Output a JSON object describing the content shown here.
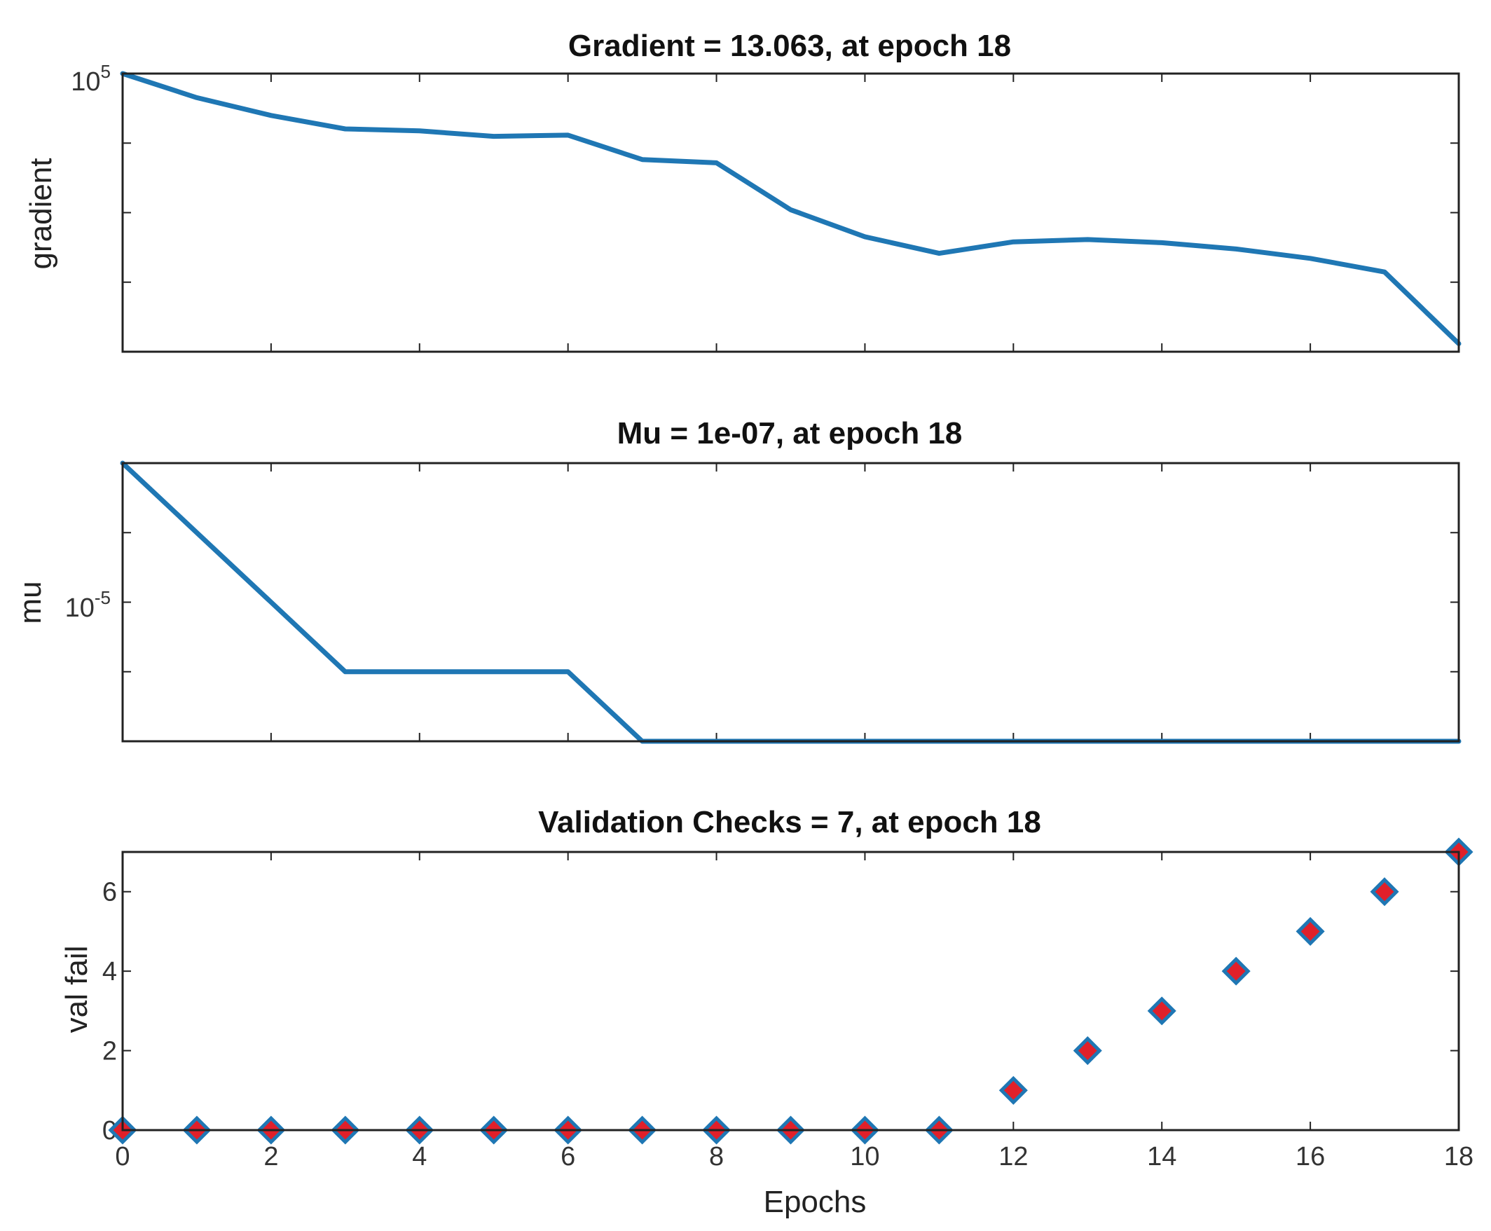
{
  "chart_data": [
    {
      "type": "line",
      "title": "Gradient = 13.063, at epoch 18",
      "xlabel": "",
      "ylabel": "gradient",
      "yscale": "log",
      "xlim": [
        0,
        18
      ],
      "ylim": [
        10,
        100000
      ],
      "grid": false,
      "x": [
        0,
        1,
        2,
        3,
        4,
        5,
        6,
        7,
        8,
        9,
        10,
        11,
        12,
        13,
        14,
        15,
        16,
        17,
        18
      ],
      "series": [
        {
          "name": "gradient",
          "color": "#1f77b4",
          "values": [
            100000,
            45000,
            25000,
            16000,
            15000,
            12500,
            13000,
            5800,
            5200,
            1100,
            450,
            260,
            380,
            410,
            370,
            300,
            220,
            140,
            13.063
          ]
        }
      ],
      "y_ticks": [
        {
          "base": "10",
          "exp": "5",
          "value": 100000
        }
      ]
    },
    {
      "type": "line",
      "title": "Mu = 1e-07, at epoch 18",
      "xlabel": "",
      "ylabel": "mu",
      "yscale": "log",
      "xlim": [
        0,
        18
      ],
      "ylim": [
        1e-07,
        0.001
      ],
      "grid": false,
      "x": [
        0,
        1,
        2,
        3,
        4,
        5,
        6,
        7,
        8,
        9,
        10,
        11,
        12,
        13,
        14,
        15,
        16,
        17,
        18
      ],
      "series": [
        {
          "name": "mu",
          "color": "#1f77b4",
          "values": [
            0.001,
            0.0001,
            1e-05,
            1e-06,
            1e-06,
            1e-06,
            1e-06,
            1e-07,
            1e-07,
            1e-07,
            1e-07,
            1e-07,
            1e-07,
            1e-07,
            1e-07,
            1e-07,
            1e-07,
            1e-07,
            1e-07
          ]
        }
      ],
      "y_ticks": [
        {
          "base": "10",
          "exp": "-5",
          "value": 1e-05
        }
      ]
    },
    {
      "type": "scatter",
      "title": "Validation Checks = 7, at epoch 18",
      "xlabel": "Epochs",
      "ylabel": "val fail",
      "xlim": [
        0,
        18
      ],
      "ylim": [
        0,
        7
      ],
      "grid": false,
      "x": [
        0,
        1,
        2,
        3,
        4,
        5,
        6,
        7,
        8,
        9,
        10,
        11,
        12,
        13,
        14,
        15,
        16,
        17,
        18
      ],
      "x_ticks": [
        "0",
        "2",
        "4",
        "6",
        "8",
        "10",
        "12",
        "14",
        "16",
        "18"
      ],
      "y_ticks": [
        "0",
        "2",
        "4",
        "6"
      ],
      "series": [
        {
          "name": "val fail",
          "color": "#1f77b4",
          "marker_fill": "#e0202a",
          "marker": "diamond",
          "values": [
            0,
            0,
            0,
            0,
            0,
            0,
            0,
            0,
            0,
            0,
            0,
            0,
            1,
            2,
            3,
            4,
            5,
            6,
            7
          ]
        }
      ]
    }
  ]
}
